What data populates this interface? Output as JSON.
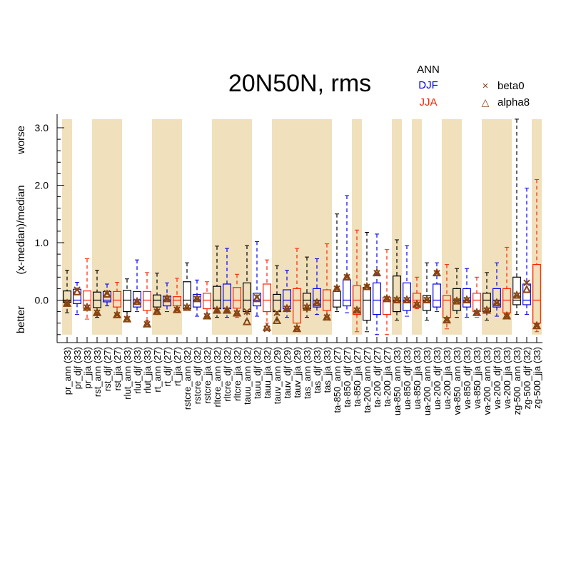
{
  "chart_data": {
    "type": "boxplot",
    "title": "20N50N, rms",
    "ylabel": "(x-median)/median",
    "y_annotations": {
      "top": "worse",
      "bottom": "better"
    },
    "ylim": [
      -0.7,
      3.25
    ],
    "y_ticks": [
      0.0,
      1.0,
      2.0,
      3.0
    ],
    "y_tick_labels": [
      "0.0",
      "1.0",
      "2.0",
      "3.0"
    ],
    "legend": {
      "season_labels": [
        {
          "text": "ANN",
          "color": "#000000"
        },
        {
          "text": "DJF",
          "color": "#0000ee"
        },
        {
          "text": "JJA",
          "color": "#ff2200"
        }
      ],
      "markers": [
        {
          "text": "beta0",
          "symbol": "×"
        },
        {
          "text": "alpha8",
          "symbol": "△"
        }
      ]
    },
    "colors": {
      "ANN": "#000000",
      "DJF": "#0000ee",
      "JJA": "#ff2200",
      "shade": "#f0e0bb",
      "marker": "#8b4513"
    },
    "variables": [
      {
        "label": "pr_ann (33)",
        "season": "ANN",
        "whisker_low": -0.22,
        "q1": -0.04,
        "median": 0.0,
        "q3": 0.16,
        "whisker_high": 0.52,
        "beta0": -0.06,
        "alpha8": -0.06
      },
      {
        "label": "pr_djf (33)",
        "season": "DJF",
        "whisker_low": -0.25,
        "q1": -0.06,
        "median": 0.0,
        "q3": 0.19,
        "whisker_high": 0.31,
        "beta0": 0.18,
        "alpha8": 0.14
      },
      {
        "label": "pr_jja (33)",
        "season": "JJA",
        "whisker_low": -0.33,
        "q1": -0.14,
        "median": 0.0,
        "q3": 0.16,
        "whisker_high": 0.72,
        "beta0": -0.13,
        "alpha8": -0.13
      },
      {
        "label": "rst_ann (33)",
        "season": "ANN",
        "whisker_low": -0.3,
        "q1": -0.13,
        "median": 0.0,
        "q3": 0.14,
        "whisker_high": 0.52,
        "beta0": -0.22,
        "alpha8": -0.22
      },
      {
        "label": "rst_djf (27)",
        "season": "DJF",
        "whisker_low": -0.1,
        "q1": -0.03,
        "median": 0.0,
        "q3": 0.15,
        "whisker_high": 0.28,
        "beta0": 0.12,
        "alpha8": 0.1
      },
      {
        "label": "rst_jja (27)",
        "season": "JJA",
        "whisker_low": -0.26,
        "q1": -0.12,
        "median": 0.0,
        "q3": 0.15,
        "whisker_high": 0.31,
        "beta0": -0.26,
        "alpha8": -0.26
      },
      {
        "label": "rlut_ann (33)",
        "season": "ANN",
        "whisker_low": -0.3,
        "q1": -0.2,
        "median": 0.0,
        "q3": 0.17,
        "whisker_high": 0.37,
        "beta0": -0.33,
        "alpha8": -0.33
      },
      {
        "label": "rlut_djf (33)",
        "season": "DJF",
        "whisker_low": -0.2,
        "q1": -0.12,
        "median": 0.0,
        "q3": 0.15,
        "whisker_high": 0.7,
        "beta0": -0.03,
        "alpha8": -0.03
      },
      {
        "label": "rlut_jja (33)",
        "season": "JJA",
        "whisker_low": -0.35,
        "q1": -0.18,
        "median": 0.0,
        "q3": 0.15,
        "whisker_high": 0.48,
        "beta0": -0.42,
        "alpha8": -0.42
      },
      {
        "label": "rt_ann (27)",
        "season": "ANN",
        "whisker_low": -0.25,
        "q1": -0.12,
        "median": 0.0,
        "q3": 0.09,
        "whisker_high": 0.47,
        "beta0": -0.2,
        "alpha8": -0.2
      },
      {
        "label": "rt_djf (27)",
        "season": "DJF",
        "whisker_low": -0.2,
        "q1": -0.1,
        "median": 0.0,
        "q3": 0.07,
        "whisker_high": 0.3,
        "beta0": 0.02,
        "alpha8": 0.02
      },
      {
        "label": "rt_jja (27)",
        "season": "JJA",
        "whisker_low": -0.22,
        "q1": -0.1,
        "median": 0.0,
        "q3": 0.06,
        "whisker_high": 0.38,
        "beta0": -0.17,
        "alpha8": -0.17
      },
      {
        "label": "rstcre_ann (32)",
        "season": "ANN",
        "whisker_low": -0.15,
        "q1": -0.15,
        "median": 0.0,
        "q3": 0.32,
        "whisker_high": 0.65,
        "beta0": -0.13,
        "alpha8": -0.13
      },
      {
        "label": "rstcre_djf (32)",
        "season": "DJF",
        "whisker_low": -0.28,
        "q1": -0.12,
        "median": 0.0,
        "q3": 0.1,
        "whisker_high": 0.35,
        "beta0": 0.02,
        "alpha8": 0.02
      },
      {
        "label": "rstcre_jja (32)",
        "season": "JJA",
        "whisker_low": -0.3,
        "q1": -0.15,
        "median": 0.0,
        "q3": 0.12,
        "whisker_high": 0.32,
        "beta0": -0.28,
        "alpha8": -0.28
      },
      {
        "label": "rltcre_ann (32)",
        "season": "ANN",
        "whisker_low": -0.3,
        "q1": -0.15,
        "median": 0.0,
        "q3": 0.24,
        "whisker_high": 0.94,
        "beta0": -0.18,
        "alpha8": -0.18
      },
      {
        "label": "rltcre_djf (32)",
        "season": "DJF",
        "whisker_low": -0.3,
        "q1": -0.15,
        "median": 0.0,
        "q3": 0.28,
        "whisker_high": 0.9,
        "beta0": -0.18,
        "alpha8": -0.18
      },
      {
        "label": "rltcre_jja (32)",
        "season": "JJA",
        "whisker_low": -0.3,
        "q1": -0.14,
        "median": 0.0,
        "q3": 0.22,
        "whisker_high": 0.45,
        "beta0": -0.23,
        "alpha8": -0.23
      },
      {
        "label": "tauu_ann (32)",
        "season": "ANN",
        "whisker_low": -0.35,
        "q1": -0.2,
        "median": 0.0,
        "q3": 0.3,
        "whisker_high": 0.95,
        "beta0": -0.2,
        "alpha8": -0.38
      },
      {
        "label": "tauu_djf (32)",
        "season": "DJF",
        "whisker_low": -0.28,
        "q1": -0.1,
        "median": 0.0,
        "q3": 0.12,
        "whisker_high": 1.02,
        "beta0": 0.05,
        "alpha8": 0.02
      },
      {
        "label": "tauu_jja (32)",
        "season": "JJA",
        "whisker_low": -0.4,
        "q1": -0.2,
        "median": 0.0,
        "q3": 0.28,
        "whisker_high": 0.7,
        "beta0": -0.5,
        "alpha8": -0.48
      },
      {
        "label": "tauv_ann (29)",
        "season": "ANN",
        "whisker_low": -0.4,
        "q1": -0.2,
        "median": 0.0,
        "q3": 0.1,
        "whisker_high": 0.6,
        "beta0": -0.22,
        "alpha8": -0.36
      },
      {
        "label": "tauv_djf (29)",
        "season": "DJF",
        "whisker_low": -0.3,
        "q1": -0.15,
        "median": 0.0,
        "q3": 0.18,
        "whisker_high": 0.52,
        "beta0": -0.15,
        "alpha8": -0.15
      },
      {
        "label": "tauv_jja (29)",
        "season": "JJA",
        "whisker_low": -0.5,
        "q1": -0.4,
        "median": 0.0,
        "q3": 0.2,
        "whisker_high": 0.9,
        "beta0": -0.5,
        "alpha8": -0.5
      },
      {
        "label": "tas_ann (33)",
        "season": "ANN",
        "whisker_low": -0.3,
        "q1": -0.15,
        "median": 0.0,
        "q3": 0.12,
        "whisker_high": 0.75,
        "beta0": -0.13,
        "alpha8": -0.13
      },
      {
        "label": "tas_djf (33)",
        "season": "DJF",
        "whisker_low": -0.25,
        "q1": -0.12,
        "median": 0.0,
        "q3": 0.2,
        "whisker_high": 0.72,
        "beta0": -0.05,
        "alpha8": -0.05
      },
      {
        "label": "tas_jja (33)",
        "season": "JJA",
        "whisker_low": -0.3,
        "q1": -0.18,
        "median": 0.0,
        "q3": 0.18,
        "whisker_high": 0.98,
        "beta0": -0.3,
        "alpha8": -0.3
      },
      {
        "label": "ta-850_ann (27)",
        "season": "ANN",
        "whisker_low": -0.2,
        "q1": -0.12,
        "median": 0.0,
        "q3": 0.15,
        "whisker_high": 1.5,
        "beta0": 0.2,
        "alpha8": 0.2
      },
      {
        "label": "ta-850_djf (27)",
        "season": "DJF",
        "whisker_low": -0.22,
        "q1": -0.1,
        "median": 0.0,
        "q3": 0.35,
        "whisker_high": 1.82,
        "beta0": 0.4,
        "alpha8": 0.4
      },
      {
        "label": "ta-850_jja (27)",
        "season": "JJA",
        "whisker_low": -0.55,
        "q1": -0.25,
        "median": 0.0,
        "q3": 0.25,
        "whisker_high": 1.22,
        "beta0": -0.18,
        "alpha8": -0.18
      },
      {
        "label": "ta-200_ann (27)",
        "season": "ANN",
        "whisker_low": -0.55,
        "q1": -0.35,
        "median": 0.0,
        "q3": 0.22,
        "whisker_high": 1.18,
        "beta0": 0.23,
        "alpha8": 0.23
      },
      {
        "label": "ta-200_djf (27)",
        "season": "DJF",
        "whisker_low": -0.6,
        "q1": -0.25,
        "median": 0.0,
        "q3": 0.3,
        "whisker_high": 1.15,
        "beta0": 0.47,
        "alpha8": 0.47
      },
      {
        "label": "ta-200_jja (27)",
        "season": "JJA",
        "whisker_low": -0.6,
        "q1": -0.25,
        "median": 0.0,
        "q3": 0.05,
        "whisker_high": 0.88,
        "beta0": 0.02,
        "alpha8": 0.02
      },
      {
        "label": "ua-850_ann (33)",
        "season": "ANN",
        "whisker_low": -0.35,
        "q1": -0.2,
        "median": 0.0,
        "q3": 0.42,
        "whisker_high": 1.05,
        "beta0": 0.0,
        "alpha8": 0.0
      },
      {
        "label": "ua-850_djf (33)",
        "season": "DJF",
        "whisker_low": -0.28,
        "q1": -0.18,
        "median": 0.0,
        "q3": 0.3,
        "whisker_high": 0.95,
        "beta0": 0.0,
        "alpha8": 0.0
      },
      {
        "label": "ua-850_jja (33)",
        "season": "JJA",
        "whisker_low": -0.15,
        "q1": -0.12,
        "median": 0.0,
        "q3": 0.12,
        "whisker_high": 0.4,
        "beta0": -0.08,
        "alpha8": -0.08
      },
      {
        "label": "ua-200_ann (33)",
        "season": "ANN",
        "whisker_low": -0.35,
        "q1": -0.18,
        "median": 0.0,
        "q3": 0.08,
        "whisker_high": 0.65,
        "beta0": 0.0,
        "alpha8": 0.0
      },
      {
        "label": "ua-200_djf (33)",
        "season": "DJF",
        "whisker_low": -0.2,
        "q1": -0.12,
        "median": 0.0,
        "q3": 0.28,
        "whisker_high": 0.65,
        "beta0": 0.47,
        "alpha8": 0.47
      },
      {
        "label": "ua-200_jja (33)",
        "season": "JJA",
        "whisker_low": -0.5,
        "q1": -0.3,
        "median": 0.0,
        "q3": 0.08,
        "whisker_high": 0.62,
        "beta0": -0.35,
        "alpha8": -0.35
      },
      {
        "label": "va-850_ann (33)",
        "season": "ANN",
        "whisker_low": -0.3,
        "q1": -0.18,
        "median": 0.0,
        "q3": 0.2,
        "whisker_high": 0.55,
        "beta0": -0.02,
        "alpha8": -0.02
      },
      {
        "label": "va-850_djf (33)",
        "season": "DJF",
        "whisker_low": -0.3,
        "q1": -0.12,
        "median": 0.0,
        "q3": 0.2,
        "whisker_high": 0.55,
        "beta0": 0.0,
        "alpha8": 0.0
      },
      {
        "label": "va-850_jja (33)",
        "season": "JJA",
        "whisker_low": -0.3,
        "q1": -0.2,
        "median": 0.0,
        "q3": 0.12,
        "whisker_high": 0.4,
        "beta0": -0.22,
        "alpha8": -0.22
      },
      {
        "label": "va-200_ann (33)",
        "season": "ANN",
        "whisker_low": -0.35,
        "q1": -0.2,
        "median": 0.0,
        "q3": 0.12,
        "whisker_high": 0.48,
        "beta0": -0.18,
        "alpha8": -0.18
      },
      {
        "label": "va-200_djf (33)",
        "season": "DJF",
        "whisker_low": -0.28,
        "q1": -0.12,
        "median": 0.0,
        "q3": 0.2,
        "whisker_high": 0.65,
        "beta0": -0.05,
        "alpha8": -0.05
      },
      {
        "label": "va-200_jja (33)",
        "season": "JJA",
        "whisker_low": -0.3,
        "q1": -0.22,
        "median": 0.0,
        "q3": 0.2,
        "whisker_high": 0.92,
        "beta0": -0.28,
        "alpha8": -0.28
      },
      {
        "label": "zg-500_ann (33)",
        "season": "ANN",
        "whisker_low": -0.25,
        "q1": -0.08,
        "median": 0.0,
        "q3": 0.4,
        "whisker_high": 3.15,
        "beta0": 0.08,
        "alpha8": 0.08
      },
      {
        "label": "zg-500_djf (32)",
        "season": "DJF",
        "whisker_low": -0.25,
        "q1": -0.08,
        "median": 0.0,
        "q3": 0.28,
        "whisker_high": 1.95,
        "beta0": 0.3,
        "alpha8": 0.18
      },
      {
        "label": "zg-500_jja (33)",
        "season": "JJA",
        "whisker_low": -0.55,
        "q1": -0.4,
        "median": 0.0,
        "q3": 0.62,
        "whisker_high": 2.1,
        "beta0": -0.45,
        "alpha8": -0.45
      }
    ],
    "shaded_groups": [
      [
        0,
        0
      ],
      [
        3,
        5
      ],
      [
        9,
        11
      ],
      [
        15,
        18
      ],
      [
        21,
        26
      ],
      [
        29,
        29
      ],
      [
        33,
        33
      ],
      [
        35,
        35
      ],
      [
        38,
        39
      ],
      [
        42,
        44
      ],
      [
        47,
        47
      ]
    ]
  }
}
